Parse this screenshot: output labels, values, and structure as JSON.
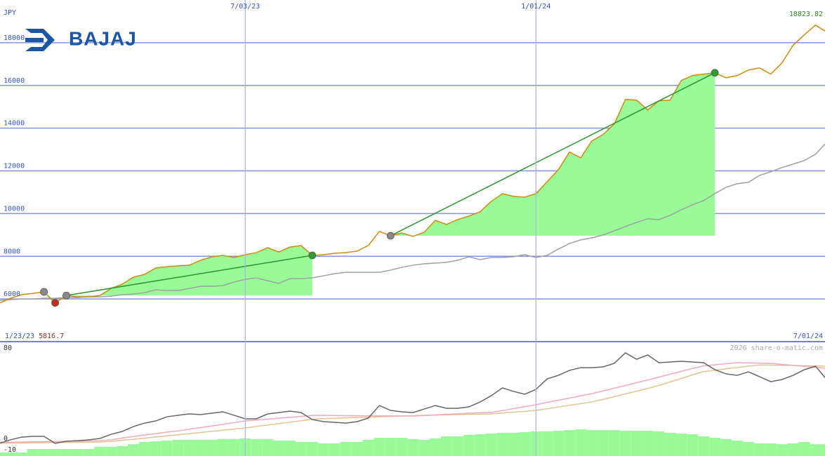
{
  "logo": {
    "text": "BAJAJ"
  },
  "chart_data": [
    {
      "type": "line",
      "y_unit": "JPY",
      "low_label": "5816.7",
      "high_label": "18823.82",
      "categories": [
        "1/23/23",
        null,
        null,
        null,
        null,
        null,
        null,
        null,
        null,
        null,
        null,
        null,
        null,
        null,
        null,
        null,
        null,
        null,
        null,
        null,
        null,
        null,
        null,
        "7/03/23",
        null,
        null,
        null,
        null,
        null,
        null,
        null,
        null,
        null,
        null,
        null,
        null,
        null,
        null,
        null,
        null,
        null,
        null,
        null,
        null,
        null,
        null,
        null,
        null,
        null,
        "1/01/24",
        null,
        null,
        null,
        null,
        null,
        null,
        null,
        null,
        null,
        null,
        null,
        null,
        null,
        null,
        null,
        null,
        null,
        null,
        null,
        null,
        null,
        null,
        null,
        null,
        null,
        "7/01/24"
      ],
      "ylim": [
        4000,
        20000
      ],
      "yticks": [
        6000,
        8000,
        10000,
        12000,
        14000,
        16000,
        18000
      ],
      "grid": true,
      "series": [
        {
          "color": "#d08a0c",
          "values": [
            5803,
            5800,
            6030,
            6200,
            6260,
            6330,
            5816.7,
            6160,
            6100,
            6100,
            6160,
            6490,
            6690,
            7020,
            7150,
            7450,
            7510,
            7550,
            7580,
            7810,
            7970,
            8040,
            7940,
            8070,
            8170,
            8400,
            8200,
            8430,
            8500,
            8040,
            8070,
            8140,
            8170,
            8240,
            8500,
            9160,
            8960,
            9090,
            8930,
            9120,
            9680,
            9490,
            9720,
            9880,
            10080,
            10570,
            10930,
            10800,
            10770,
            10930,
            11490,
            12050,
            12880,
            12610,
            13400,
            13700,
            14190,
            15340,
            15310,
            14850,
            15280,
            15310,
            16230,
            16460,
            16530,
            16590,
            16360,
            16460,
            16720,
            16820,
            16530,
            17050,
            17880,
            18370,
            18823.82,
            18500
          ]
        },
        {
          "color": "#a0a0a0",
          "values": [
            5934,
            5934,
            5967,
            6000,
            6000,
            6033,
            6033,
            6066,
            6066,
            6099,
            6099,
            6132,
            6197,
            6230,
            6296,
            6428,
            6395,
            6395,
            6494,
            6592,
            6592,
            6625,
            6790,
            6921,
            6987,
            6855,
            6724,
            6954,
            6954,
            6987,
            7086,
            7184,
            7250,
            7250,
            7250,
            7250,
            7349,
            7481,
            7579,
            7645,
            7678,
            7711,
            7810,
            7974,
            7842,
            7941,
            7941,
            7974,
            8073,
            7941,
            8040,
            8336,
            8599,
            8764,
            8862,
            8994,
            9191,
            9389,
            9586,
            9751,
            9718,
            9915,
            10178,
            10409,
            10606,
            10935,
            11231,
            11396,
            11461,
            11790,
            11955,
            12152,
            12317,
            12481,
            12777,
            13336
          ]
        }
      ],
      "trades": [
        {
          "from": 7,
          "to": 29,
          "color": "#2a962a",
          "fill": "#98fb98"
        },
        {
          "from": 36,
          "to": 65,
          "color": "#2a962a",
          "fill": "#98fb98"
        }
      ],
      "markers": [
        {
          "index": 5,
          "color": "#8a8a8a"
        },
        {
          "index": 6,
          "color": "#c0301a"
        },
        {
          "index": 7,
          "color": "#8a8a8a"
        },
        {
          "index": 29,
          "color": "#2e9e2e"
        },
        {
          "index": 36,
          "color": "#8a8a8a"
        },
        {
          "index": 65,
          "color": "#2e9e2e"
        }
      ]
    },
    {
      "type": "line",
      "footer": "2026 share-o-matic.com",
      "ylim": [
        -15.5,
        85.6
      ],
      "yticks": [
        80,
        0,
        -10
      ],
      "series": [
        {
          "style": "bar",
          "color": "#98fb98",
          "values": [
            -12.4,
            -12.4,
            -12.4,
            -12.4,
            -9.3,
            -9.3,
            -9.3,
            -9.3,
            -9.3,
            -9.3,
            -7.4,
            -7.4,
            -6.8,
            -5.0,
            -3.1,
            -2.5,
            -1.9,
            -1.2,
            -1.2,
            -1.2,
            -1.2,
            -0.6,
            -0.6,
            0,
            -0.6,
            -0.6,
            -1.9,
            -1.9,
            -3.1,
            -3.1,
            -4.3,
            -4.3,
            -3.1,
            -3.1,
            -1.2,
            0.6,
            0.6,
            0.6,
            -0.6,
            -1.2,
            0,
            1.9,
            1.9,
            3.1,
            3.7,
            4.3,
            5.0,
            5.0,
            5.6,
            6.2,
            6.2,
            6.8,
            7.4,
            8.1,
            7.4,
            7.4,
            7.4,
            6.8,
            6.8,
            6.8,
            6.2,
            5.0,
            4.3,
            3.7,
            1.9,
            0.6,
            -0.6,
            -1.9,
            -3.1,
            -4.3,
            -4.3,
            -5.0,
            -4.3,
            -3.1,
            -5.0,
            -5.0
          ]
        },
        {
          "style": "line",
          "color": "#e2c48e",
          "values": [
            -4.3,
            -4.2,
            -4.1,
            -4.0,
            -3.9,
            -3.8,
            -3.6,
            -3.5,
            -3.4,
            -3.3,
            -3.2,
            -2.6,
            -1.6,
            -0.7,
            0.3,
            1.3,
            2.3,
            3.3,
            4.3,
            5.3,
            6.3,
            7.3,
            8.3,
            9.3,
            10.6,
            11.9,
            13.1,
            14.4,
            15.7,
            17.0,
            17.5,
            17.8,
            18.2,
            18.5,
            18.8,
            19.2,
            19.5,
            19.8,
            20.2,
            20.5,
            20.7,
            20.9,
            21.1,
            21.3,
            21.5,
            21.7,
            22.5,
            23.3,
            24.0,
            24.8,
            26.3,
            27.8,
            29.3,
            30.8,
            32.3,
            34.5,
            36.9,
            39.4,
            41.8,
            44.2,
            46.9,
            50.0,
            53.1,
            56.2,
            59.1,
            60.3,
            61.6,
            62.8,
            64.0,
            65.0,
            64.9,
            64.7,
            64.5,
            64.3,
            64.1,
            63.9
          ]
        },
        {
          "style": "line",
          "color": "#f4a8bc",
          "values": [
            -3.7,
            -3.5,
            -3.4,
            -3.2,
            -3.0,
            -2.9,
            -2.7,
            -2.5,
            -2.4,
            -2.2,
            -2.0,
            -1.2,
            0.4,
            1.7,
            3.0,
            4.3,
            5.6,
            6.7,
            8.2,
            9.6,
            11.0,
            12.5,
            14.0,
            15.5,
            16.3,
            17.1,
            17.9,
            18.7,
            19.5,
            20.4,
            20.4,
            20.3,
            20.2,
            20.1,
            20.0,
            20.0,
            19.9,
            19.9,
            19.8,
            20.3,
            20.8,
            21.3,
            21.8,
            22.3,
            22.8,
            23.0,
            24.7,
            26.4,
            28.1,
            29.8,
            31.9,
            33.8,
            35.7,
            37.7,
            39.6,
            42.0,
            44.4,
            46.8,
            49.3,
            51.7,
            54.2,
            56.8,
            59.3,
            61.9,
            64.1,
            65.1,
            66.1,
            67.0,
            66.8,
            66.6,
            66.4,
            65.5,
            64.6,
            63.8,
            62.9,
            62.0
          ]
        },
        {
          "style": "line",
          "color": "#666666",
          "values": [
            -4.3,
            -4.3,
            -1.2,
            1.2,
            1.9,
            1.9,
            -4.3,
            -2.5,
            -1.9,
            -1.2,
            0,
            3.7,
            6.2,
            10.5,
            13.6,
            15.5,
            19.2,
            20.5,
            21.7,
            21.1,
            22.3,
            23.6,
            20.5,
            17.4,
            17.4,
            21.7,
            22.9,
            24.2,
            22.9,
            16.7,
            14.9,
            14.3,
            13.6,
            14.9,
            18.0,
            29.1,
            24.8,
            23.6,
            22.9,
            26.0,
            29.1,
            26.7,
            26.7,
            27.9,
            32.2,
            37.8,
            44.7,
            41.6,
            39.1,
            43.4,
            52.7,
            55.8,
            60.2,
            62.6,
            62.6,
            63.3,
            66.4,
            75.7,
            70.1,
            73.8,
            67.0,
            67.6,
            68.2,
            67.6,
            67.0,
            60.8,
            57.1,
            55.8,
            58.9,
            54.6,
            50.2,
            52.1,
            55.8,
            60.8,
            63.9,
            52.1
          ]
        }
      ]
    }
  ]
}
